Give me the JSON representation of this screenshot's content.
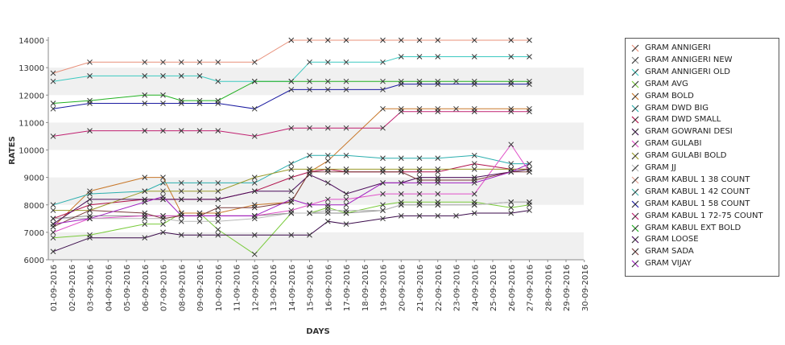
{
  "chart_data": {
    "type": "line",
    "xlabel": "DAYS",
    "ylabel": "RATES",
    "ylim": [
      6000,
      14000
    ],
    "yticks": [
      6000,
      7000,
      8000,
      9000,
      10000,
      11000,
      12000,
      13000,
      14000
    ],
    "grid": "horizontal alternating bands",
    "legend_position": "right",
    "categories": [
      "01-09-2016",
      "02-09-2016",
      "03-09-2016",
      "04-09-2016",
      "05-09-2016",
      "06-09-2016",
      "07-09-2016",
      "08-09-2016",
      "09-09-2016",
      "10-09-2016",
      "11-09-2016",
      "12-09-2016",
      "13-09-2016",
      "14-09-2016",
      "15-09-2016",
      "16-09-2016",
      "17-09-2016",
      "18-09-2016",
      "19-09-2016",
      "20-09-2016",
      "21-09-2016",
      "22-09-2016",
      "23-09-2016",
      "24-09-2016",
      "25-09-2016",
      "26-09-2016",
      "27-09-2016",
      "28-09-2016",
      "29-09-2016",
      "30-09-2016"
    ],
    "series": [
      {
        "name": "GRAM ANNIGERI",
        "color": "#e8907a",
        "values": [
          12800,
          null,
          13200,
          null,
          null,
          13200,
          13200,
          13200,
          13200,
          13200,
          null,
          13200,
          null,
          14000,
          14000,
          14000,
          14000,
          null,
          14000,
          14000,
          14000,
          14000,
          null,
          14000,
          null,
          14000,
          14000,
          null,
          null,
          null
        ]
      },
      {
        "name": "GRAM ANNIGERI NEW",
        "color": "#8a8a8a",
        "values": [
          7500,
          null,
          7600,
          null,
          null,
          7600,
          7600,
          7600,
          7600,
          7600,
          null,
          7600,
          null,
          7700,
          7700,
          7700,
          7700,
          null,
          7800,
          8000,
          8000,
          8000,
          null,
          8000,
          null,
          8100,
          8100,
          null,
          null,
          null
        ]
      },
      {
        "name": "GRAM ANNIGERI OLD",
        "color": "#3cc9c0",
        "values": [
          12500,
          null,
          12700,
          null,
          null,
          12700,
          12700,
          12700,
          12700,
          12500,
          null,
          12500,
          null,
          12500,
          13200,
          13200,
          13200,
          null,
          13200,
          13400,
          13400,
          13400,
          null,
          13400,
          null,
          13400,
          13400,
          null,
          null,
          null
        ]
      },
      {
        "name": "GRAM AVG",
        "color": "#7acb3c",
        "values": [
          6800,
          null,
          6900,
          null,
          null,
          7300,
          7300,
          7700,
          7700,
          7100,
          null,
          6200,
          null,
          7700,
          7700,
          7900,
          7700,
          null,
          8000,
          8100,
          8100,
          8100,
          null,
          8100,
          null,
          7900,
          8000,
          null,
          null,
          null
        ]
      },
      {
        "name": "GRAM BOLD",
        "color": "#c8782a",
        "values": [
          7200,
          null,
          8500,
          null,
          null,
          9000,
          9000,
          7700,
          7700,
          7700,
          null,
          8000,
          null,
          8100,
          9200,
          9600,
          null,
          null,
          11500,
          11500,
          11500,
          11500,
          11500,
          11500,
          null,
          11500,
          11500,
          null,
          null,
          null
        ]
      },
      {
        "name": "GRAM DWD BIG",
        "color": "#2aaeae",
        "values": [
          8000,
          null,
          8400,
          null,
          null,
          8500,
          8800,
          8800,
          8800,
          8800,
          null,
          8800,
          null,
          9500,
          9800,
          9800,
          9800,
          null,
          9700,
          9700,
          9700,
          9700,
          null,
          9800,
          null,
          9500,
          9500,
          null,
          null,
          null
        ]
      },
      {
        "name": "GRAM DWD SMALL",
        "color": "#b0104a",
        "values": [
          7500,
          null,
          8000,
          null,
          null,
          8200,
          8200,
          8200,
          8200,
          8200,
          null,
          8500,
          null,
          9000,
          9200,
          9300,
          9200,
          null,
          9200,
          9200,
          9200,
          9200,
          null,
          9500,
          null,
          9300,
          9300,
          null,
          null,
          null
        ]
      },
      {
        "name": "GRAM GOWRANI DESI",
        "color": "#3a0a4a",
        "values": [
          6300,
          null,
          6800,
          null,
          null,
          6800,
          7000,
          6900,
          6900,
          6900,
          null,
          6900,
          null,
          6900,
          6900,
          7400,
          7300,
          null,
          7500,
          7600,
          7600,
          7600,
          7600,
          7700,
          null,
          7700,
          7800,
          null,
          null,
          null
        ]
      },
      {
        "name": "GRAM GULABI",
        "color": "#e050c8",
        "values": [
          7000,
          null,
          7500,
          null,
          null,
          7600,
          7600,
          7600,
          7600,
          7600,
          null,
          7600,
          null,
          7800,
          8000,
          8200,
          8200,
          null,
          8400,
          8400,
          8400,
          8400,
          null,
          8400,
          null,
          10200,
          9200,
          null,
          null,
          null
        ]
      },
      {
        "name": "GRAM GULABI BOLD",
        "color": "#9a9a2a",
        "values": [
          7800,
          null,
          7800,
          null,
          null,
          8500,
          8500,
          8500,
          8500,
          8500,
          null,
          9000,
          null,
          9300,
          9300,
          9300,
          9300,
          null,
          9300,
          9300,
          9300,
          9300,
          null,
          9300,
          null,
          9300,
          9300,
          null,
          null,
          null
        ]
      },
      {
        "name": "GRAM JJ",
        "color": "#b8b8b8",
        "values": [
          7500,
          null,
          7500,
          null,
          null,
          7500,
          7500,
          7400,
          7400,
          7400,
          null,
          7500,
          null,
          7700,
          7700,
          7800,
          7800,
          null,
          7800,
          8000,
          8000,
          8000,
          null,
          8000,
          null,
          8100,
          8100,
          null,
          null,
          null
        ]
      },
      {
        "name": "GRAM KABUL 1 38 COUNT",
        "color": "#e0a090",
        "values": [
          null,
          null,
          null,
          null,
          null,
          null,
          null,
          null,
          null,
          null,
          null,
          null,
          null,
          null,
          null,
          null,
          null,
          null,
          null,
          null,
          null,
          null,
          null,
          null,
          null,
          null,
          null,
          null,
          null,
          null
        ]
      },
      {
        "name": "GRAM KABUL 1 42 COUNT",
        "color": "#40b0a8",
        "values": [
          null,
          null,
          null,
          null,
          null,
          null,
          null,
          null,
          null,
          null,
          null,
          null,
          null,
          null,
          null,
          null,
          null,
          null,
          null,
          null,
          null,
          null,
          null,
          null,
          null,
          null,
          null,
          null,
          null,
          null
        ]
      },
      {
        "name": "GRAM KABUL 1 58 COUNT",
        "color": "#1a1aa0",
        "values": [
          11500,
          null,
          11700,
          null,
          null,
          11700,
          11700,
          11700,
          11700,
          11700,
          null,
          11500,
          null,
          12200,
          12200,
          12200,
          12200,
          null,
          12200,
          12400,
          12400,
          12400,
          null,
          12400,
          null,
          12400,
          12400,
          null,
          null,
          null
        ]
      },
      {
        "name": "GRAM KABUL 1 72-75 COUNT",
        "color": "#c02070",
        "values": [
          10500,
          null,
          10700,
          null,
          null,
          10700,
          10700,
          10700,
          10700,
          10700,
          null,
          10500,
          null,
          10800,
          10800,
          10800,
          10800,
          null,
          10800,
          11400,
          11400,
          11400,
          null,
          11400,
          null,
          11400,
          11400,
          null,
          null,
          null
        ]
      },
      {
        "name": "GRAM KABUL EXT BOLD",
        "color": "#20b020",
        "values": [
          11700,
          null,
          11800,
          null,
          null,
          12000,
          12000,
          11800,
          11800,
          11800,
          null,
          12500,
          null,
          12500,
          12500,
          12500,
          12500,
          null,
          12500,
          12500,
          12500,
          12500,
          12500,
          12500,
          null,
          12500,
          12500,
          null,
          null,
          null
        ]
      },
      {
        "name": "GRAM LOOSE",
        "color": "#4a0a5a",
        "values": [
          7300,
          null,
          8200,
          null,
          null,
          8200,
          8200,
          8200,
          8200,
          8200,
          null,
          8500,
          null,
          8500,
          9100,
          8800,
          8400,
          null,
          8800,
          8800,
          9000,
          9000,
          null,
          9000,
          null,
          9200,
          9300,
          null,
          null,
          null
        ]
      },
      {
        "name": "GRAM SADA",
        "color": "#7a3a3a",
        "values": [
          7200,
          null,
          7800,
          null,
          null,
          7700,
          7500,
          7600,
          7600,
          7900,
          null,
          7900,
          null,
          8100,
          9200,
          9200,
          9200,
          null,
          9200,
          9200,
          8900,
          8900,
          null,
          8900,
          null,
          9200,
          9200,
          null,
          null,
          null
        ]
      },
      {
        "name": "GRAM VIJAY",
        "color": "#a020c0",
        "values": [
          7300,
          null,
          7500,
          null,
          null,
          8100,
          8300,
          7600,
          7600,
          7600,
          null,
          7600,
          null,
          8200,
          8000,
          8000,
          8000,
          null,
          8800,
          8800,
          8800,
          8800,
          null,
          8800,
          null,
          9200,
          9500,
          null,
          null,
          null
        ]
      }
    ]
  }
}
